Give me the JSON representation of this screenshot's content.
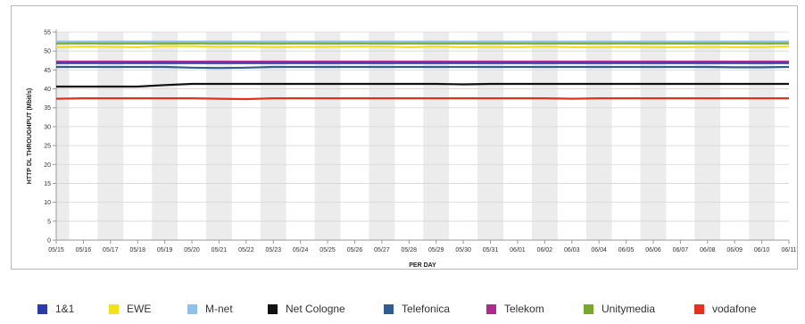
{
  "chart_data": {
    "type": "line",
    "xlabel": "PER DAY",
    "ylabel": "HTTP DL THROUGHPUT (Mbit/s)",
    "ylim": [
      0,
      55
    ],
    "yticks": [
      0,
      5,
      10,
      15,
      20,
      25,
      30,
      35,
      40,
      45,
      50,
      55
    ],
    "grid": true,
    "legend_position": "bottom",
    "x": [
      "05/15",
      "05/16",
      "05/17",
      "05/18",
      "05/19",
      "05/20",
      "05/21",
      "05/22",
      "05/23",
      "05/24",
      "05/25",
      "05/26",
      "05/27",
      "05/28",
      "05/29",
      "05/30",
      "05/31",
      "06/01",
      "06/02",
      "06/03",
      "06/04",
      "06/05",
      "06/06",
      "06/07",
      "06/08",
      "06/09",
      "06/10",
      "06/11"
    ],
    "series": [
      {
        "name": "1&1",
        "color": "#2b3aa8",
        "values": [
          46.8,
          46.8,
          46.8,
          46.8,
          46.8,
          46.8,
          46.8,
          46.8,
          46.8,
          46.8,
          46.8,
          46.8,
          46.8,
          46.8,
          46.8,
          46.8,
          46.8,
          46.8,
          46.8,
          46.8,
          46.8,
          46.8,
          46.8,
          46.8,
          46.8,
          46.8,
          46.8,
          46.8
        ]
      },
      {
        "name": "EWE",
        "color": "#f2e21a",
        "values": [
          51.0,
          51.2,
          51.1,
          51.0,
          51.3,
          51.3,
          51.1,
          51.2,
          51.0,
          51.1,
          51.1,
          51.2,
          51.2,
          51.0,
          51.2,
          51.0,
          51.1,
          51.0,
          51.2,
          51.0,
          51.0,
          51.1,
          51.0,
          51.0,
          51.1,
          51.0,
          51.0,
          51.3
        ]
      },
      {
        "name": "M-net",
        "color": "#8fc2e8",
        "values": [
          52.5,
          52.5,
          52.5,
          52.5,
          52.5,
          52.5,
          52.5,
          52.5,
          52.5,
          52.5,
          52.5,
          52.5,
          52.5,
          52.5,
          52.5,
          52.5,
          52.5,
          52.5,
          52.5,
          52.5,
          52.5,
          52.5,
          52.5,
          52.5,
          52.5,
          52.5,
          52.5,
          52.5
        ]
      },
      {
        "name": "Net Cologne",
        "color": "#111111",
        "values": [
          40.6,
          40.6,
          40.6,
          40.6,
          41.0,
          41.3,
          41.3,
          41.3,
          41.3,
          41.3,
          41.3,
          41.3,
          41.3,
          41.3,
          41.3,
          41.2,
          41.3,
          41.3,
          41.3,
          41.3,
          41.3,
          41.3,
          41.3,
          41.3,
          41.3,
          41.3,
          41.3,
          41.3
        ]
      },
      {
        "name": "Telefonica",
        "color": "#2f5d91",
        "values": [
          45.8,
          45.8,
          45.8,
          45.8,
          45.8,
          45.6,
          45.5,
          45.6,
          45.8,
          45.8,
          45.8,
          45.8,
          45.8,
          45.8,
          45.8,
          45.8,
          45.8,
          45.8,
          45.8,
          45.8,
          45.8,
          45.8,
          45.8,
          45.8,
          45.8,
          45.7,
          45.7,
          45.8
        ]
      },
      {
        "name": "Telekom",
        "color": "#b02a8c",
        "values": [
          47.2,
          47.2,
          47.2,
          47.2,
          47.2,
          47.2,
          47.2,
          47.2,
          47.2,
          47.2,
          47.2,
          47.2,
          47.2,
          47.2,
          47.2,
          47.2,
          47.2,
          47.2,
          47.2,
          47.2,
          47.2,
          47.2,
          47.2,
          47.2,
          47.2,
          47.2,
          47.2,
          47.2
        ]
      },
      {
        "name": "Unitymedia",
        "color": "#7aa82b",
        "values": [
          52.0,
          52.0,
          52.0,
          52.0,
          52.0,
          52.0,
          52.0,
          52.0,
          52.0,
          52.0,
          52.0,
          52.0,
          52.0,
          52.0,
          52.0,
          52.0,
          52.0,
          52.0,
          52.0,
          52.0,
          52.0,
          52.0,
          52.0,
          52.0,
          52.0,
          52.0,
          52.0,
          52.0
        ]
      },
      {
        "name": "vodafone",
        "color": "#e1321f",
        "values": [
          37.4,
          37.5,
          37.5,
          37.5,
          37.5,
          37.5,
          37.4,
          37.3,
          37.5,
          37.5,
          37.5,
          37.5,
          37.5,
          37.5,
          37.5,
          37.5,
          37.5,
          37.5,
          37.5,
          37.4,
          37.5,
          37.5,
          37.5,
          37.5,
          37.5,
          37.5,
          37.5,
          37.5
        ]
      }
    ]
  }
}
